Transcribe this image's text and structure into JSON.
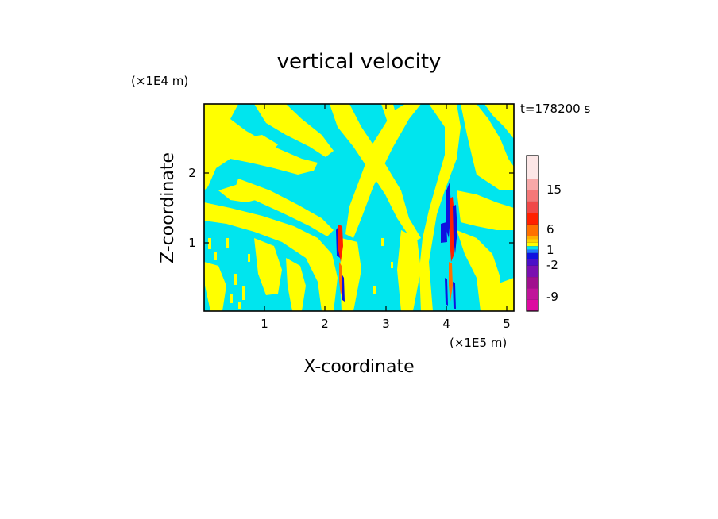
{
  "chart_data": {
    "type": "heatmap",
    "title": "vertical velocity",
    "xlabel": "X-coordinate",
    "ylabel": "Z-coordinate",
    "x_unit": "(×1E5 m)",
    "y_unit": "(×1E4 m)",
    "time_label": "t=178200 s",
    "xlim": [
      0,
      5.1
    ],
    "ylim": [
      0,
      2.95
    ],
    "x_ticks": [
      "1",
      "2",
      "3",
      "4",
      "5"
    ],
    "y_ticks": [
      "1",
      "2"
    ],
    "colorbar": {
      "labels": [
        "15",
        "6",
        "1",
        "-2",
        "-9"
      ],
      "bands": [
        {
          "color": "#dd0aa0"
        },
        {
          "color": "#c0149a"
        },
        {
          "color": "#a0108e"
        },
        {
          "color": "#7a10b0"
        },
        {
          "color": "#4a10c8"
        },
        {
          "color": "#1010e0"
        },
        {
          "color": "#1e78ff"
        },
        {
          "color": "#00e5ee"
        },
        {
          "color": "#ffff00"
        },
        {
          "color": "#ffd700"
        },
        {
          "color": "#ffb000"
        },
        {
          "color": "#ff7000"
        },
        {
          "color": "#ff2000"
        },
        {
          "color": "#f04848"
        },
        {
          "color": "#f47878"
        },
        {
          "color": "#f7a8a8"
        },
        {
          "color": "#fce6e6"
        }
      ]
    },
    "field_colors": {
      "background": "#00e5ee",
      "positive": "#ffff00",
      "strong_negative": "#1010e0",
      "strong_positive": "#ff2000"
    }
  }
}
